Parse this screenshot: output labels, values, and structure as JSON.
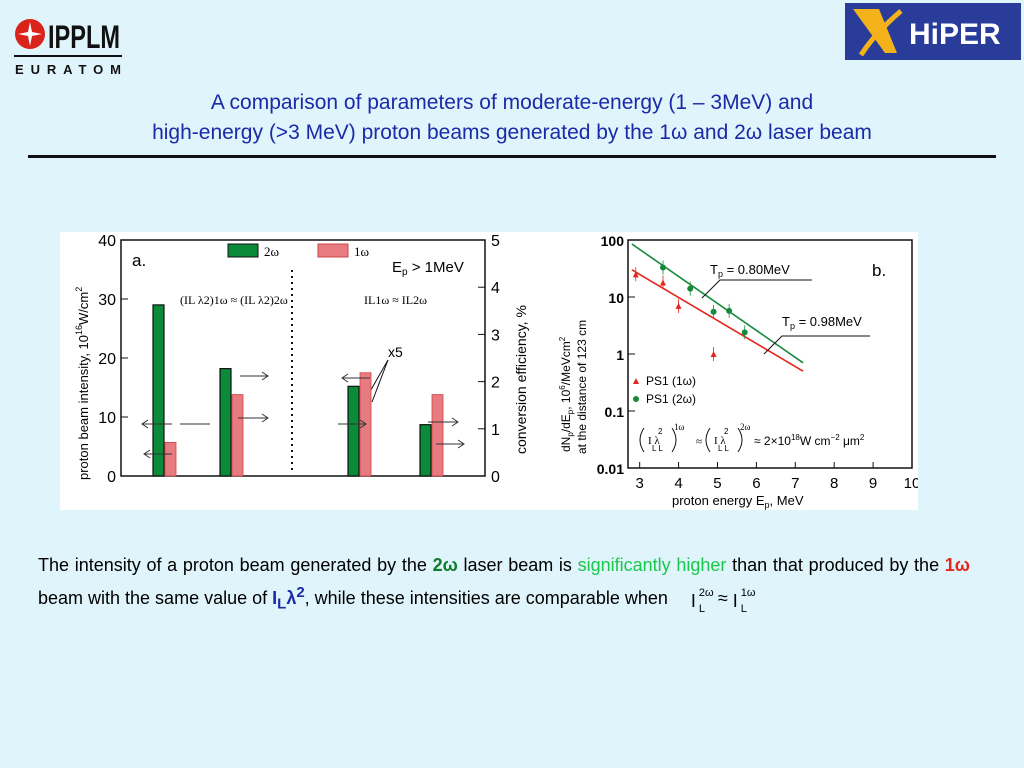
{
  "logos": {
    "left_name": "IPPLM",
    "left_sub": "EURATOM",
    "right_name": "HiPER"
  },
  "title": {
    "line1": "A comparison of parameters of moderate-energy (1 – 3MeV) and",
    "line2_pre": "high-energy (>3 MeV) proton beams generated by the 1",
    "line2_mid": " and 2",
    "line2_post": " laser beam",
    "omega": "ω"
  },
  "chart_data": [
    {
      "type": "bar",
      "panel_label": "a.",
      "annotation": "E",
      "annotation_sub": "p",
      "annotation_tail": " > 1MeV",
      "legend": [
        "2ω",
        "1ω"
      ],
      "ylabel_left": "proton beam intensity, 10",
      "ylabel_left_sup": "16",
      "ylabel_left_tail": "W/cm",
      "ylabel_left_sup2": "2",
      "ylabel_right": "conversion efficiency, %",
      "left_ticks": [
        "0",
        "10",
        "20",
        "30",
        "40"
      ],
      "right_ticks": [
        "0",
        "1",
        "2",
        "3",
        "4",
        "5"
      ],
      "ylim_left": [
        0,
        40
      ],
      "ylim_right": [
        0,
        5
      ],
      "groups": [
        {
          "label": "(IL λ2)1ω ≈ (IL λ2)2ω",
          "values": [
            29,
            5.7
          ],
          "axes": [
            "left",
            "left"
          ]
        },
        {
          "label": "",
          "values": [
            18.2,
            13.8
          ],
          "axes": [
            "left",
            "left"
          ]
        },
        {
          "label": "IL1ω ≈ IL2ω",
          "values": [
            15.2,
            17.5
          ],
          "axes": [
            "left",
            "left"
          ]
        },
        {
          "label": "",
          "values": [
            8.7,
            13.8
          ],
          "axes": [
            "left",
            "left"
          ]
        }
      ],
      "x5_label": "x5",
      "colors": {
        "omega2": "#0b8a3a",
        "omega1": "#e87b80"
      }
    },
    {
      "type": "scatter",
      "panel_label": "b.",
      "xlabel": "proton energy E",
      "xlabel_sub": "p",
      "xlabel_tail": ", MeV",
      "ylabel_line1": "dN",
      "ylabel_line1_sub": "p",
      "ylabel_line1_tail": "/dE",
      "ylabel_line1_sub2": "p",
      "ylabel_line1_tail2": ", 10",
      "ylabel_line1_sup": "6",
      "ylabel_line1_tail3": "/MeVcm",
      "ylabel_line1_sup2": "2",
      "ylabel_line2": "at the distance of 123 cm",
      "x_ticks": [
        "3",
        "4",
        "5",
        "6",
        "7",
        "8",
        "9",
        "10"
      ],
      "y_ticks": [
        "0.01",
        "0.1",
        "1",
        "10",
        "100"
      ],
      "xlim": [
        2.7,
        10
      ],
      "ylim": [
        0.01,
        100
      ],
      "yscale": "log",
      "series": [
        {
          "name": "PS1 (1ω)",
          "color": "#e4261d",
          "marker": "triangle",
          "x": [
            2.9,
            3.6,
            4.0,
            4.9
          ],
          "y": [
            25,
            18,
            7,
            1.0
          ],
          "fit": {
            "x": [
              2.8,
              7.2
            ],
            "y": [
              30,
              0.5
            ]
          }
        },
        {
          "name": "PS1 (2ω)",
          "color": "#178a3a",
          "marker": "circle",
          "x": [
            3.6,
            4.3,
            4.9,
            5.3,
            5.7
          ],
          "y": [
            33,
            14,
            5.5,
            5.7,
            2.4
          ],
          "fit": {
            "x": [
              2.8,
              7.2
            ],
            "y": [
              85,
              0.7
            ]
          }
        }
      ],
      "annotations": [
        {
          "text_pre": "T",
          "sub": "p",
          "text": " = 0.80MeV"
        },
        {
          "text_pre": "T",
          "sub": "p",
          "text": " = 0.98MeV"
        }
      ],
      "condition": "≈ 2×10",
      "condition_sup": "18",
      "condition_tail": "W cm",
      "condition_sup2": "−2",
      "condition_tail2": " μm",
      "condition_sup3": "2"
    }
  ],
  "body": {
    "p1": "The intensity  of a proton beam generated by the ",
    "two_omega": "2ω",
    "p2": " laser beam is ",
    "highlight": "significantly  higher",
    "p3": "  than that  produced  by  the  ",
    "one_omega": "1ω",
    "p4": "  beam  with  the  same  value of  ",
    "il": "I",
    "il_sub": "L",
    "lambda": "λ",
    "lambda_sup": "2",
    "p5": ", while these  intensities  are comparable when ",
    "cmp_base1": "I",
    "cmp_sup1": "2ω",
    "cmp_sub1": "L",
    "approx": " ≈ ",
    "cmp_base2": "I",
    "cmp_sup2": "1ω",
    "cmp_sub2": "L"
  }
}
